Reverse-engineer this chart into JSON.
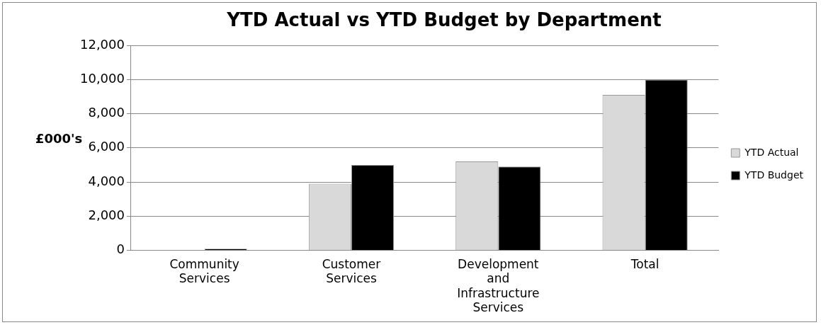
{
  "chart_data": {
    "type": "bar",
    "title": "YTD Actual vs YTD Budget by Department",
    "ylabel": "£000's",
    "categories": [
      "Community Services",
      "Customer Services",
      "Development and Infrastructure Services",
      "Total"
    ],
    "series": [
      {
        "name": "YTD Actual",
        "color": "#d9d9d9",
        "values": [
          0,
          3900,
          5200,
          9100
        ]
      },
      {
        "name": "YTD Budget",
        "color": "#000000",
        "values": [
          90,
          5000,
          4900,
          10000
        ]
      }
    ],
    "ylim": [
      0,
      12000
    ],
    "yticks": [
      0,
      {
        "value": 2000,
        "label": "2,000"
      },
      {
        "value": 4000,
        "label": "4,000"
      },
      {
        "value": 6000,
        "label": "6,000"
      },
      {
        "value": 8000,
        "label": "8,000"
      },
      {
        "value": 10000,
        "label": "10,000"
      },
      {
        "value": 12000,
        "label": "12,000"
      }
    ],
    "grid": "y",
    "legend": "right"
  }
}
